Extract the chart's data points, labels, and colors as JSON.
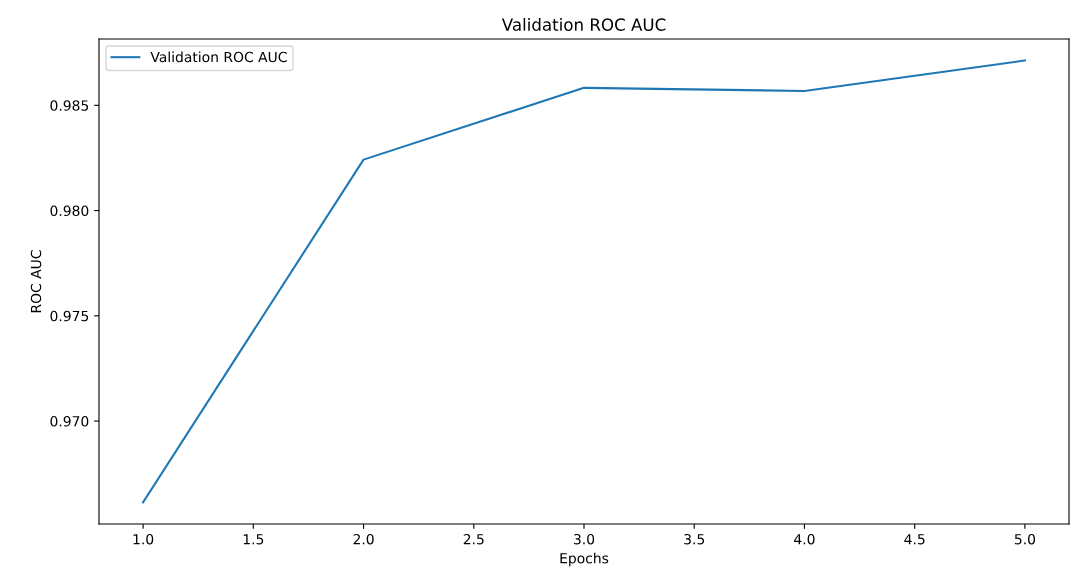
{
  "chart_data": {
    "type": "line",
    "title": "Validation ROC AUC",
    "xlabel": "Epochs",
    "ylabel": "ROC AUC",
    "x": [
      1,
      2,
      3,
      4,
      5
    ],
    "series": [
      {
        "name": "Validation ROC AUC",
        "color": "#1f77b4",
        "values": [
          0.96614,
          0.98242,
          0.98583,
          0.98568,
          0.98713
        ]
      }
    ],
    "xlim": [
      0.8,
      5.2
    ],
    "ylim": [
      0.96511,
      0.98815
    ],
    "xticks": [
      {
        "value": 1,
        "label": "1.0"
      },
      {
        "value": 1.5,
        "label": "1.5"
      },
      {
        "value": 2,
        "label": "2.0"
      },
      {
        "value": 2.5,
        "label": "2.5"
      },
      {
        "value": 3,
        "label": "3.0"
      },
      {
        "value": 3.5,
        "label": "3.5"
      },
      {
        "value": 4,
        "label": "4.0"
      },
      {
        "value": 4.5,
        "label": "4.5"
      },
      {
        "value": 5,
        "label": "5.0"
      }
    ],
    "yticks": [
      {
        "value": 0.97,
        "label": "0.970"
      },
      {
        "value": 0.975,
        "label": "0.975"
      },
      {
        "value": 0.98,
        "label": "0.980"
      },
      {
        "value": 0.985,
        "label": "0.985"
      }
    ],
    "legend": "upper left",
    "grid": false
  }
}
